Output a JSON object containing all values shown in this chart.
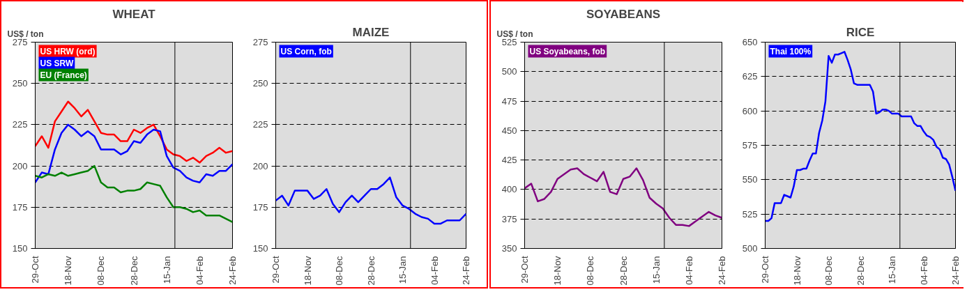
{
  "chart_data": [
    {
      "type": "line",
      "title": "WHEAT",
      "ylabel": "US$ / ton",
      "ylim": [
        150,
        275
      ],
      "yticks": [
        150,
        175,
        200,
        225,
        250,
        275
      ],
      "categories": [
        "29-Oct",
        null,
        null,
        null,
        null,
        "18-Nov",
        null,
        null,
        null,
        null,
        "08-Dec",
        null,
        null,
        null,
        null,
        "28-Dec",
        null,
        null,
        null,
        null,
        "15-Jan",
        null,
        null,
        null,
        null,
        "04-Feb",
        null,
        null,
        null,
        null,
        "24-Feb"
      ],
      "grid": "y",
      "legend": "top left",
      "series": [
        {
          "name": "US HRW (ord)",
          "color": "#ff0000",
          "values": [
            212,
            218,
            211,
            227,
            233,
            239,
            235,
            230,
            234,
            227,
            220,
            219,
            219,
            215,
            215,
            222,
            220,
            223,
            225,
            218,
            210,
            207,
            206,
            203,
            205,
            202,
            206,
            208,
            211,
            208,
            209
          ]
        },
        {
          "name": "US SRW",
          "color": "#0000ff",
          "values": [
            190,
            196,
            195,
            210,
            220,
            225,
            222,
            218,
            221,
            218,
            210,
            210,
            210,
            207,
            209,
            215,
            214,
            219,
            222,
            221,
            206,
            199,
            197,
            193,
            191,
            190,
            195,
            194,
            197,
            197,
            201
          ]
        },
        {
          "name": "EU (France)",
          "color": "#008000",
          "values": [
            194,
            193,
            195,
            194,
            196,
            194,
            195,
            196,
            197,
            200,
            190,
            187,
            187,
            184,
            185,
            185,
            186,
            190,
            189,
            188,
            181,
            175,
            175,
            174,
            172,
            173,
            170,
            170,
            170,
            168,
            166
          ]
        }
      ]
    },
    {
      "type": "line",
      "title": "MAIZE",
      "ylim": [
        150,
        275
      ],
      "yticks": [
        150,
        175,
        200,
        225,
        250,
        275
      ],
      "categories": [
        "29-Oct",
        null,
        null,
        null,
        null,
        "18-Nov",
        null,
        null,
        null,
        null,
        "08-Dec",
        null,
        null,
        null,
        null,
        "28-Dec",
        null,
        null,
        null,
        null,
        "15-Jan",
        null,
        null,
        null,
        null,
        "04-Feb",
        null,
        null,
        null,
        null,
        "24-Feb"
      ],
      "grid": "y",
      "legend": "top left",
      "series": [
        {
          "name": "US Corn, fob",
          "color": "#0000ff",
          "values": [
            179,
            182,
            176,
            185,
            185,
            185,
            180,
            182,
            186,
            177,
            172,
            178,
            182,
            178,
            182,
            186,
            186,
            189,
            193,
            181,
            176,
            174,
            171,
            169,
            168,
            165,
            165,
            167,
            167,
            167,
            171
          ]
        }
      ]
    },
    {
      "type": "line",
      "title": "SOYABEANS",
      "ylabel": "US$ / ton",
      "ylim": [
        350,
        525
      ],
      "yticks": [
        350,
        375,
        400,
        425,
        450,
        475,
        500,
        525
      ],
      "categories": [
        "29-Oct",
        null,
        null,
        null,
        null,
        "18-Nov",
        null,
        null,
        null,
        null,
        "08-Dec",
        null,
        null,
        null,
        null,
        "28-Dec",
        null,
        null,
        null,
        null,
        "15-Jan",
        null,
        null,
        null,
        null,
        "04-Feb",
        null,
        null,
        null,
        null,
        "24-Feb"
      ],
      "grid": "y",
      "legend": "top left",
      "series": [
        {
          "name": "US Soyabeans, fob",
          "color": "#800080",
          "values": [
            401,
            405,
            390,
            392,
            398,
            409,
            413,
            417,
            418,
            413,
            410,
            407,
            415,
            398,
            396,
            409,
            411,
            418,
            408,
            393,
            388,
            384,
            376,
            370,
            370,
            369,
            373,
            377,
            381,
            378,
            376
          ]
        }
      ]
    },
    {
      "type": "line",
      "title": "RICE",
      "ylim": [
        500,
        650
      ],
      "yticks": [
        500,
        525,
        550,
        575,
        600,
        625,
        650
      ],
      "categories": [
        "29-Oct",
        null,
        null,
        null,
        null,
        null,
        null,
        null,
        null,
        null,
        "18-Nov",
        null,
        null,
        null,
        null,
        null,
        null,
        null,
        null,
        null,
        "08-Dec",
        null,
        null,
        null,
        null,
        null,
        null,
        null,
        null,
        null,
        "28-Dec",
        null,
        null,
        null,
        null,
        null,
        null,
        null,
        null,
        null,
        "15-Jan",
        null,
        null,
        null,
        null,
        null,
        null,
        null,
        null,
        null,
        "04-Feb",
        null,
        null,
        null,
        null,
        null,
        null,
        null,
        null,
        null,
        "24-Feb"
      ],
      "grid": "y",
      "legend": "top left",
      "series": [
        {
          "name": "Thai 100%",
          "color": "#0000ff",
          "values": [
            520,
            520,
            522,
            533,
            533,
            533,
            539,
            538,
            537,
            545,
            557,
            557,
            558,
            558,
            564,
            569,
            569,
            584,
            593,
            607,
            640,
            635,
            641,
            641,
            642,
            643,
            637,
            630,
            620,
            619,
            619,
            619,
            619,
            619,
            614,
            598,
            599,
            601,
            601,
            600,
            598,
            598,
            598,
            596,
            596,
            596,
            596,
            591,
            589,
            589,
            585,
            582,
            581,
            579,
            574,
            572,
            566,
            565,
            561,
            552,
            542
          ]
        }
      ]
    }
  ]
}
